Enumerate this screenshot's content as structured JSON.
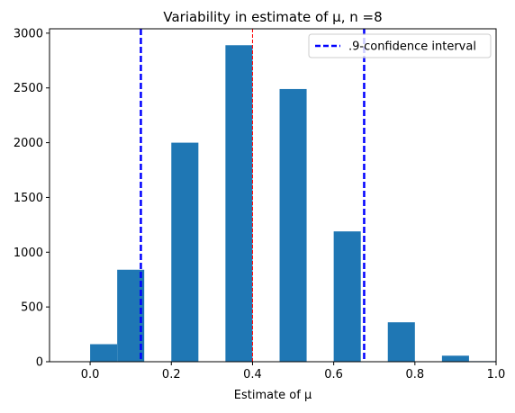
{
  "chart_data": {
    "type": "bar",
    "title": "Variability in estimate of μ, n =8",
    "xlabel": "Estimate of μ",
    "ylabel": "",
    "xlim": [
      -0.1,
      1.0
    ],
    "ylim": [
      0,
      3040
    ],
    "xticks": [
      0.0,
      0.2,
      0.4,
      0.6,
      0.8,
      1.0
    ],
    "xtick_labels": [
      "0.0",
      "0.2",
      "0.4",
      "0.6",
      "0.8",
      "1.0"
    ],
    "yticks": [
      0,
      500,
      1000,
      1500,
      2000,
      2500,
      3000
    ],
    "ytick_labels": [
      "0",
      "500",
      "1000",
      "1500",
      "2000",
      "2500",
      "3000"
    ],
    "bar_color": "#1f77b4",
    "bins": [
      {
        "x0": 0.0,
        "x1": 0.0667,
        "value": 160
      },
      {
        "x0": 0.0667,
        "x1": 0.1333,
        "value": 840
      },
      {
        "x0": 0.2,
        "x1": 0.2667,
        "value": 2000
      },
      {
        "x0": 0.3333,
        "x1": 0.4,
        "value": 2890
      },
      {
        "x0": 0.4667,
        "x1": 0.5333,
        "value": 2490
      },
      {
        "x0": 0.6,
        "x1": 0.6667,
        "value": 1190
      },
      {
        "x0": 0.7333,
        "x1": 0.8,
        "value": 360
      },
      {
        "x0": 0.8667,
        "x1": 0.9333,
        "value": 55
      },
      {
        "x0": 0.9333,
        "x1": 1.0,
        "value": 5
      }
    ],
    "confidence_interval": {
      "lower": 0.125,
      "upper": 0.675,
      "color": "#0000ff",
      "style": "dashed"
    },
    "mean_line": {
      "x": 0.4,
      "color": "#ff0000",
      "style": "dashed"
    },
    "legend": {
      "position": "top-right",
      "entries": [
        {
          "label": ".9-confidence interval",
          "color": "#0000ff",
          "style": "dashed"
        }
      ]
    },
    "grid": false
  }
}
